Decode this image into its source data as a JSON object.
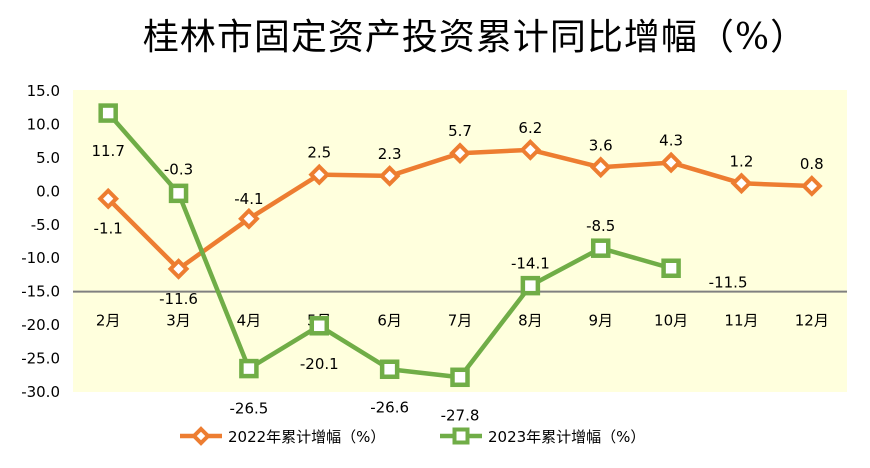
{
  "chart_data": {
    "type": "line",
    "title": "桂林市固定资产投资累计同比增幅（%）",
    "xlabel": "",
    "ylabel": "",
    "categories": [
      "2月",
      "3月",
      "4月",
      "5月",
      "6月",
      "7月",
      "8月",
      "9月",
      "10月",
      "11月",
      "12月"
    ],
    "ylim": [
      -30,
      15
    ],
    "yticks": [
      "15.0",
      "10.0",
      "5.0",
      "0.0",
      "-5.0",
      "-10.0",
      "-15.0",
      "-20.0",
      "-25.0",
      "-30.0"
    ],
    "ytick_values": [
      15,
      10,
      5,
      0,
      -5,
      -10,
      -15,
      -20,
      -25,
      -30
    ],
    "category_axis_crosses_at": -15,
    "grid": false,
    "legend_position": "bottom",
    "series": [
      {
        "name": "2022年累计增幅（%）",
        "color": "#ED7D31",
        "marker": "diamond",
        "values": [
          -1.1,
          -11.6,
          -4.1,
          2.5,
          2.3,
          5.7,
          6.2,
          3.6,
          4.3,
          1.2,
          0.8
        ],
        "labels": [
          "-1.1",
          "-11.6",
          "-4.1",
          "2.5",
          "2.3",
          "5.7",
          "6.2",
          "3.6",
          "4.3",
          "1.2",
          "0.8"
        ]
      },
      {
        "name": "2023年累计增幅（%）",
        "color": "#70AD47",
        "marker": "square",
        "values": [
          11.7,
          -0.3,
          -26.5,
          -20.1,
          -26.6,
          -27.8,
          -14.1,
          -8.5,
          -11.5,
          null,
          null
        ],
        "labels": [
          "11.7",
          "-0.3",
          "-26.5",
          "-20.1",
          "-26.6",
          "-27.8",
          "-14.1",
          "-8.5",
          "-11.5",
          null,
          null
        ]
      }
    ],
    "plot_background": "#FFFFDD",
    "axis_color": "#808080"
  }
}
